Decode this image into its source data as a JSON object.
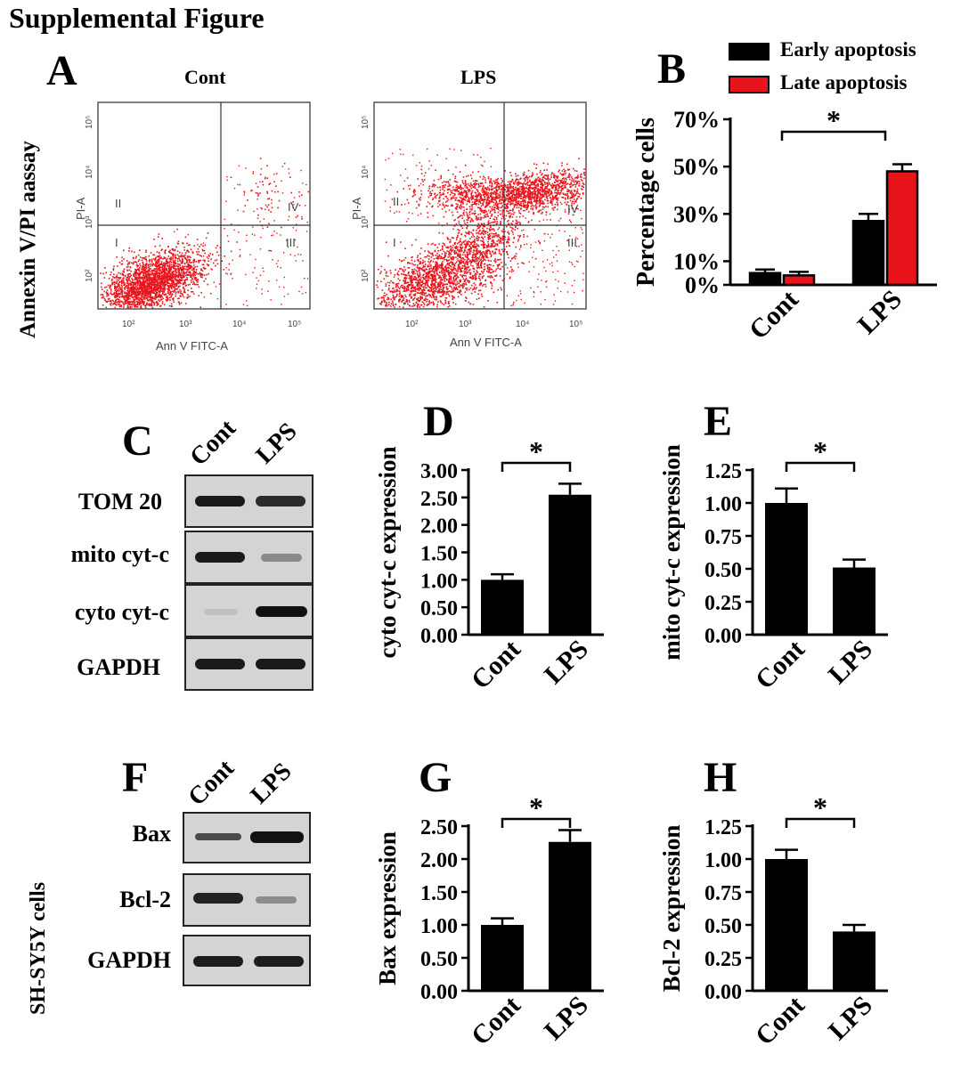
{
  "figure_title": "Supplemental Figure",
  "panels": {
    "A": {
      "letter": "A",
      "ylabel": "Annexin V/PI aassay",
      "plots": [
        {
          "title": "Cont",
          "xlabel": "Ann V  FITC-A",
          "ylabel": "PI-A",
          "x_ticks": [
            "10²",
            "10³",
            "10⁴",
            "10⁵"
          ],
          "y_ticks": [
            "10²",
            "10³",
            "10⁴",
            "10⁵"
          ],
          "quadrants": [
            "I",
            "II",
            "III",
            "IV"
          ]
        },
        {
          "title": "LPS",
          "xlabel": "Ann V  FITC-A",
          "ylabel": "PI-A",
          "x_ticks": [
            "10²",
            "10³",
            "10⁴",
            "10⁵"
          ],
          "y_ticks": [
            "10²",
            "10³",
            "10⁴",
            "10⁵"
          ],
          "quadrants": [
            "I",
            "II",
            "III",
            "IV"
          ]
        }
      ]
    },
    "B": {
      "letter": "B"
    },
    "C": {
      "letter": "C",
      "columns": [
        "Cont",
        "LPS"
      ],
      "rows": [
        "TOM 20",
        "mito cyt-c",
        "cyto cyt-c",
        "GAPDH"
      ]
    },
    "D": {
      "letter": "D"
    },
    "E": {
      "letter": "E"
    },
    "F": {
      "letter": "F",
      "cell_line": "SH-SY5Y cells",
      "columns": [
        "Cont",
        "LPS"
      ],
      "rows": [
        "Bax",
        "Bcl-2",
        "GAPDH"
      ]
    },
    "G": {
      "letter": "G"
    },
    "H": {
      "letter": "H"
    }
  },
  "colors": {
    "flow_dots": "#e8141c",
    "early": "#000000",
    "late": "#e8141c"
  },
  "chart_data": [
    {
      "id": "B",
      "type": "bar",
      "categories": [
        "Cont",
        "LPS"
      ],
      "series": [
        {
          "name": "Early apoptosis",
          "values": [
            5,
            27
          ],
          "errors": [
            1.5,
            3
          ]
        },
        {
          "name": "Late apoptosis",
          "values": [
            4,
            48
          ],
          "errors": [
            1.5,
            3
          ]
        }
      ],
      "ylabel": "Percentage cells",
      "yticks": [
        "0%",
        "10%",
        "30%",
        "50%",
        "70%"
      ],
      "ytick_values": [
        0,
        10,
        30,
        50,
        70
      ],
      "ylim": [
        0,
        70
      ],
      "significance": "*"
    },
    {
      "id": "D",
      "type": "bar",
      "categories": [
        "Cont",
        "LPS"
      ],
      "values": [
        1.0,
        2.55
      ],
      "errors": [
        0.1,
        0.2
      ],
      "ylabel": "cyto cyt-c expression",
      "yticks": [
        "0.00",
        "0.50",
        "1.00",
        "1.50",
        "2.00",
        "2.50",
        "3.00"
      ],
      "ytick_values": [
        0,
        0.5,
        1,
        1.5,
        2,
        2.5,
        3
      ],
      "ylim": [
        0,
        3.0
      ],
      "significance": "*"
    },
    {
      "id": "E",
      "type": "bar",
      "categories": [
        "Cont",
        "LPS"
      ],
      "values": [
        1.0,
        0.51
      ],
      "errors": [
        0.11,
        0.06
      ],
      "ylabel": "mito cyt-c expression",
      "yticks": [
        "0.00",
        "0.25",
        "0.50",
        "0.75",
        "1.00",
        "1.25"
      ],
      "ytick_values": [
        0,
        0.25,
        0.5,
        0.75,
        1,
        1.25
      ],
      "ylim": [
        0,
        1.25
      ],
      "significance": "*"
    },
    {
      "id": "G",
      "type": "bar",
      "categories": [
        "Cont",
        "LPS"
      ],
      "values": [
        1.0,
        2.26
      ],
      "errors": [
        0.1,
        0.18
      ],
      "ylabel": "Bax expression",
      "yticks": [
        "0.00",
        "0.50",
        "1.00",
        "1.50",
        "2.00",
        "2.50"
      ],
      "ytick_values": [
        0,
        0.5,
        1,
        1.5,
        2,
        2.5
      ],
      "ylim": [
        0,
        2.5
      ],
      "significance": "*"
    },
    {
      "id": "H",
      "type": "bar",
      "categories": [
        "Cont",
        "LPS"
      ],
      "values": [
        1.0,
        0.45
      ],
      "errors": [
        0.07,
        0.05
      ],
      "ylabel": "Bcl-2 expression",
      "yticks": [
        "0.00",
        "0.25",
        "0.50",
        "0.75",
        "1.00",
        "1.25"
      ],
      "ytick_values": [
        0,
        0.25,
        0.5,
        0.75,
        1,
        1.25
      ],
      "ylim": [
        0,
        1.25
      ],
      "significance": "*"
    }
  ]
}
